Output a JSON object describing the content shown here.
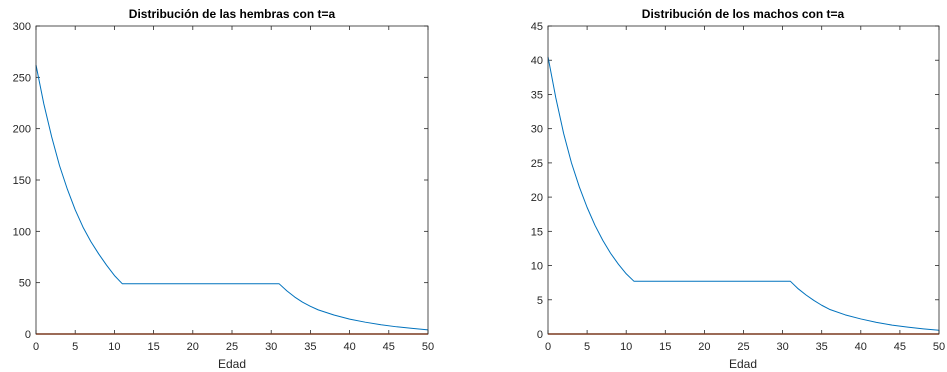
{
  "chart_data": [
    {
      "type": "line",
      "title": "Distribución de las hembras con t=a",
      "xlabel": "Edad",
      "ylabel": "",
      "xlim": [
        0,
        50
      ],
      "ylim": [
        0,
        300
      ],
      "xticks": [
        0,
        5,
        10,
        15,
        20,
        25,
        30,
        35,
        40,
        45,
        50
      ],
      "yticks": [
        0,
        50,
        100,
        150,
        200,
        250,
        300
      ],
      "grid": false,
      "series": [
        {
          "color": "#0072bd",
          "x": [
            0,
            1,
            2,
            3,
            4,
            5,
            6,
            7,
            8,
            9,
            10,
            11,
            15,
            20,
            25,
            31,
            32,
            33,
            34,
            35,
            36,
            38,
            40,
            42,
            44,
            46,
            48,
            50
          ],
          "y": [
            262,
            224,
            192,
            164,
            141,
            121,
            104,
            90,
            78,
            67,
            57,
            49,
            49,
            49,
            49,
            49,
            42,
            36,
            31,
            27,
            23.5,
            18.5,
            14.5,
            11.5,
            9,
            7,
            5.5,
            4
          ]
        },
        {
          "color": "#d95319",
          "x": [
            0,
            50
          ],
          "y": [
            0,
            0
          ]
        }
      ]
    },
    {
      "type": "line",
      "title": "Distribución de los machos con t=a",
      "xlabel": "Edad",
      "ylabel": "",
      "xlim": [
        0,
        50
      ],
      "ylim": [
        0,
        45
      ],
      "xticks": [
        0,
        5,
        10,
        15,
        20,
        25,
        30,
        35,
        40,
        45,
        50
      ],
      "yticks": [
        0,
        5,
        10,
        15,
        20,
        25,
        30,
        35,
        40,
        45
      ],
      "grid": false,
      "series": [
        {
          "color": "#0072bd",
          "x": [
            0,
            1,
            2,
            3,
            4,
            5,
            6,
            7,
            8,
            9,
            10,
            11,
            15,
            20,
            25,
            31,
            32,
            33,
            34,
            35,
            36,
            38,
            40,
            42,
            44,
            46,
            48,
            50
          ],
          "y": [
            40.5,
            34.5,
            29.3,
            25,
            21.5,
            18.5,
            15.9,
            13.7,
            11.8,
            10.2,
            8.8,
            7.7,
            7.7,
            7.7,
            7.7,
            7.7,
            6.6,
            5.7,
            4.9,
            4.2,
            3.6,
            2.8,
            2.2,
            1.7,
            1.3,
            1.0,
            0.75,
            0.55
          ]
        },
        {
          "color": "#d95319",
          "x": [
            0,
            50
          ],
          "y": [
            0,
            0
          ]
        }
      ]
    }
  ]
}
